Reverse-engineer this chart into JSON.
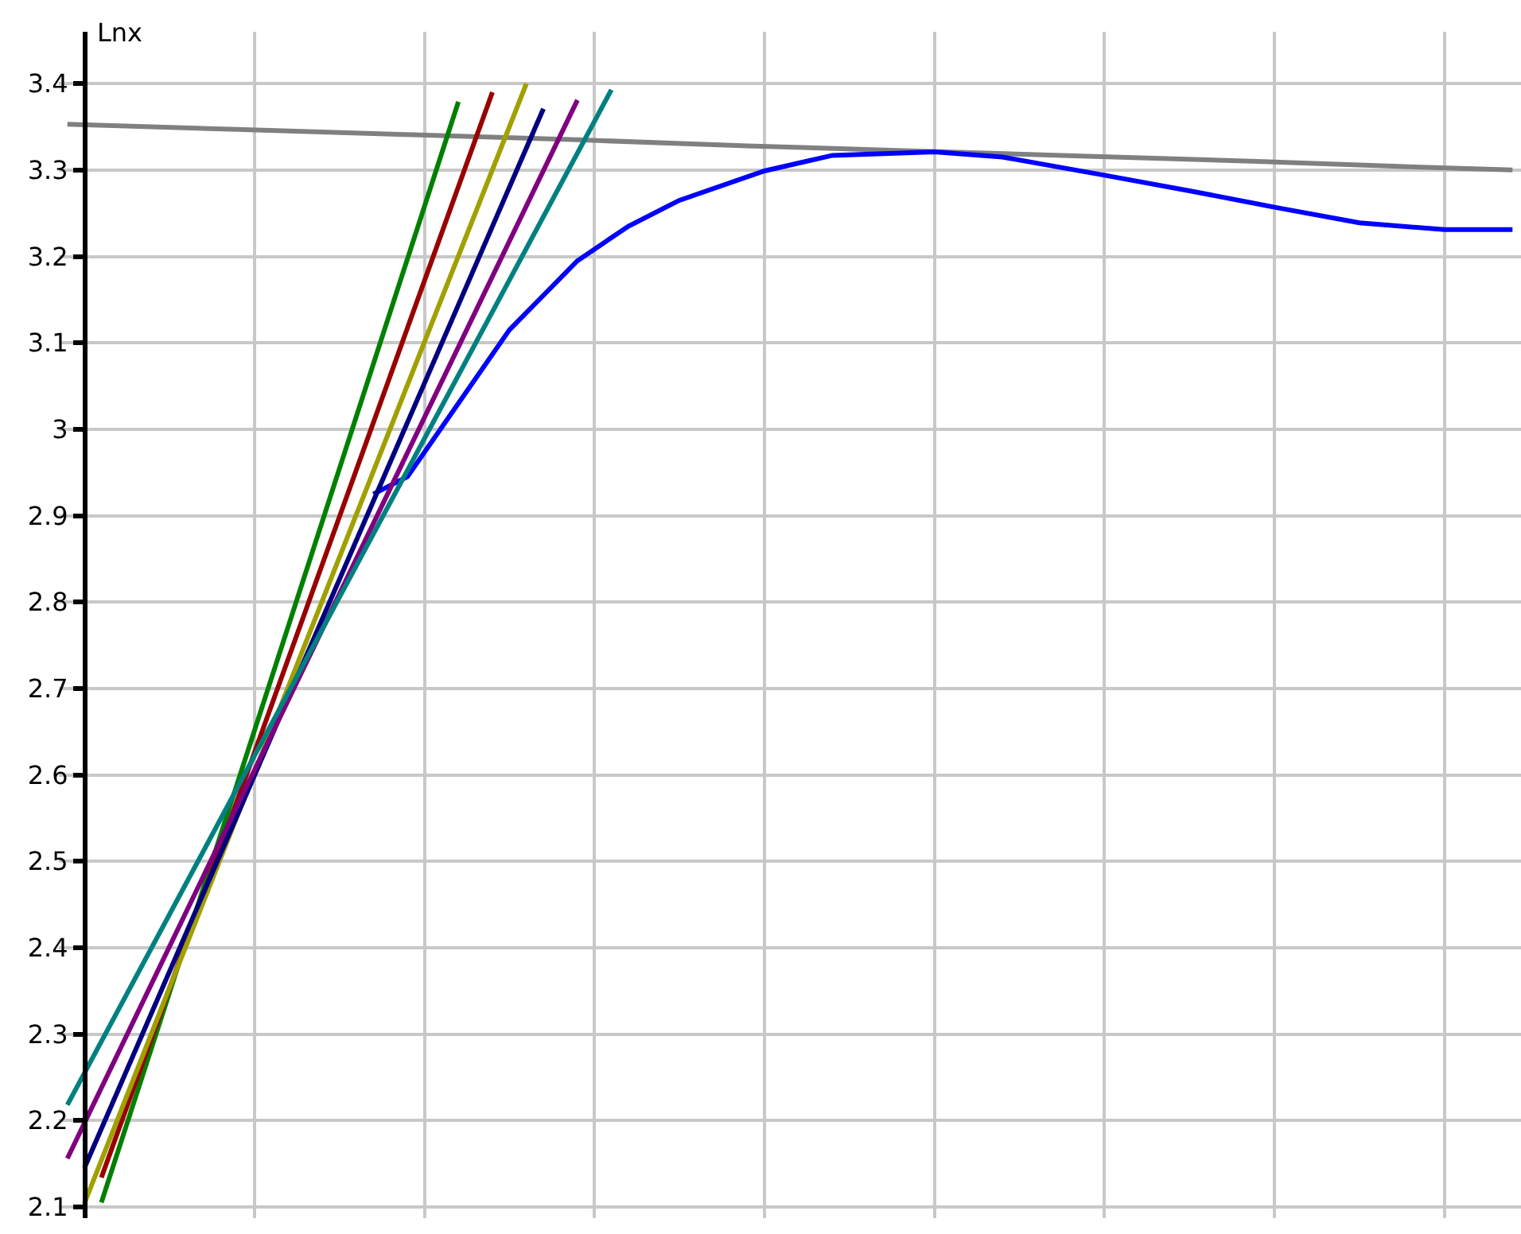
{
  "chart_data": {
    "type": "line",
    "ylabel": "Lnx",
    "categories": [
      null,
      null,
      null,
      null,
      null,
      null,
      null,
      null,
      null,
      null,
      null,
      null,
      null,
      null,
      null,
      null,
      null,
      null,
      null,
      null,
      null,
      null,
      null,
      null,
      null,
      null,
      null,
      null,
      null,
      null,
      null,
      null,
      null,
      null,
      null,
      null,
      null,
      null,
      null,
      null,
      null,
      null,
      null,
      null,
      null,
      null,
      null,
      null,
      null,
      null,
      null,
      null,
      null,
      null,
      null,
      null,
      null,
      null,
      null,
      null,
      null,
      null,
      null,
      null,
      null,
      null,
      null,
      null,
      null,
      null,
      null,
      null,
      null,
      null,
      null,
      null,
      null,
      null,
      null,
      null,
      null,
      null,
      null,
      null,
      null,
      null
    ],
    "series": [
      {
        "color": "#808080",
        "values": [
          3.353,
          null,
          null,
          null,
          null,
          null,
          null,
          null,
          null,
          null,
          3.347,
          null,
          null,
          null,
          null,
          null,
          null,
          null,
          null,
          null,
          3.341,
          null,
          null,
          null,
          null,
          null,
          null,
          null,
          null,
          null,
          3.335,
          null,
          null,
          null,
          null,
          null,
          null,
          null,
          null,
          null,
          3.328,
          null,
          null,
          null,
          null,
          null,
          null,
          null,
          null,
          null,
          3.322,
          null,
          null,
          null,
          null,
          null,
          null,
          null,
          null,
          null,
          3.316,
          null,
          null,
          null,
          null,
          null,
          null,
          null,
          null,
          null,
          3.31,
          null,
          null,
          null,
          null,
          null,
          null,
          null,
          null,
          null,
          3.303,
          null,
          null,
          null,
          null,
          3.3
        ]
      },
      {
        "color": "#0000ff",
        "values": [
          null,
          null,
          null,
          null,
          null,
          null,
          null,
          null,
          null,
          null,
          null,
          null,
          null,
          null,
          null,
          null,
          null,
          null,
          2.925,
          null,
          2.945,
          null,
          null,
          3.03,
          null,
          null,
          3.115,
          null,
          null,
          null,
          3.195,
          null,
          null,
          3.235,
          null,
          null,
          3.265,
          null,
          null,
          null,
          null,
          3.299,
          null,
          null,
          null,
          3.317,
          null,
          null,
          null,
          null,
          null,
          3.321,
          null,
          null,
          null,
          3.315,
          null,
          null,
          null,
          null,
          null,
          3.294,
          null,
          null,
          null,
          null,
          3.276,
          null,
          null,
          null,
          null,
          3.257,
          null,
          null,
          null,
          null,
          3.239,
          null,
          null,
          null,
          null,
          3.231,
          null,
          null,
          null,
          3.231
        ]
      },
      {
        "color": "#008000",
        "values": [
          null,
          null,
          2.105,
          null,
          null,
          null,
          null,
          null,
          null,
          null,
          null,
          null,
          null,
          null,
          null,
          null,
          null,
          null,
          null,
          null,
          null,
          null,
          null,
          3.379,
          null,
          null,
          null,
          null,
          null,
          null,
          null,
          null,
          null,
          null,
          null,
          null,
          null,
          null,
          null,
          null,
          null,
          null,
          null,
          null,
          null,
          null,
          null,
          null,
          null,
          null,
          null,
          null,
          null,
          null,
          null,
          null,
          null,
          null,
          null,
          null,
          null,
          null,
          null,
          null,
          null,
          null,
          null,
          null,
          null,
          null,
          null,
          null,
          null,
          null,
          null,
          null,
          null,
          null,
          null,
          null,
          null,
          null,
          null,
          null,
          null,
          null
        ]
      },
      {
        "color": "#990000",
        "values": [
          null,
          null,
          2.134,
          null,
          null,
          null,
          null,
          null,
          null,
          null,
          null,
          null,
          null,
          null,
          null,
          null,
          null,
          null,
          null,
          null,
          null,
          null,
          null,
          null,
          null,
          3.39,
          null,
          null,
          null,
          null,
          null,
          null,
          null,
          null,
          null,
          null,
          null,
          null,
          null,
          null,
          null,
          null,
          null,
          null,
          null,
          null,
          null,
          null,
          null,
          null,
          null,
          null,
          null,
          null,
          null,
          null,
          null,
          null,
          null,
          null,
          null,
          null,
          null,
          null,
          null,
          null,
          null,
          null,
          null,
          null,
          null,
          null,
          null,
          null,
          null,
          null,
          null,
          null,
          null,
          null,
          null,
          null,
          null,
          null,
          null,
          null
        ]
      },
      {
        "color": "#a0a000",
        "values": [
          null,
          2.104,
          null,
          null,
          null,
          null,
          null,
          null,
          null,
          null,
          null,
          null,
          null,
          null,
          null,
          null,
          null,
          null,
          null,
          null,
          null,
          null,
          null,
          null,
          null,
          null,
          null,
          3.4,
          null,
          null,
          null,
          null,
          null,
          null,
          null,
          null,
          null,
          null,
          null,
          null,
          null,
          null,
          null,
          null,
          null,
          null,
          null,
          null,
          null,
          null,
          null,
          null,
          null,
          null,
          null,
          null,
          null,
          null,
          null,
          null,
          null,
          null,
          null,
          null,
          null,
          null,
          null,
          null,
          null,
          null,
          null,
          null,
          null,
          null,
          null,
          null,
          null,
          null,
          null,
          null,
          null,
          null,
          null,
          null,
          null,
          null
        ]
      },
      {
        "color": "#000080",
        "values": [
          null,
          2.145,
          null,
          null,
          null,
          null,
          null,
          null,
          null,
          null,
          null,
          null,
          null,
          null,
          null,
          null,
          null,
          null,
          null,
          null,
          null,
          null,
          null,
          null,
          null,
          null,
          null,
          null,
          3.371,
          null,
          null,
          null,
          null,
          null,
          null,
          null,
          null,
          null,
          null,
          null,
          null,
          null,
          null,
          null,
          null,
          null,
          null,
          null,
          null,
          null,
          null,
          null,
          null,
          null,
          null,
          null,
          null,
          null,
          null,
          null,
          null,
          null,
          null,
          null,
          null,
          null,
          null,
          null,
          null,
          null,
          null,
          null,
          null,
          null,
          null,
          null,
          null,
          null,
          null,
          null,
          null,
          null,
          null,
          null,
          null,
          null
        ]
      },
      {
        "color": "#800080",
        "values": [
          2.156,
          null,
          null,
          null,
          null,
          null,
          null,
          null,
          null,
          null,
          null,
          null,
          null,
          null,
          null,
          null,
          null,
          null,
          null,
          null,
          null,
          null,
          null,
          null,
          null,
          null,
          null,
          null,
          null,
          null,
          3.381,
          null,
          null,
          null,
          null,
          null,
          null,
          null,
          null,
          null,
          null,
          null,
          null,
          null,
          null,
          null,
          null,
          null,
          null,
          null,
          null,
          null,
          null,
          null,
          null,
          null,
          null,
          null,
          null,
          null,
          null,
          null,
          null,
          null,
          null,
          null,
          null,
          null,
          null,
          null,
          null,
          null,
          null,
          null,
          null,
          null,
          null,
          null,
          null,
          null,
          null,
          null,
          null,
          null,
          null,
          null
        ]
      },
      {
        "color": "#008080",
        "values": [
          2.218,
          null,
          null,
          null,
          null,
          null,
          null,
          null,
          null,
          null,
          null,
          null,
          null,
          null,
          null,
          null,
          null,
          null,
          null,
          null,
          null,
          null,
          null,
          null,
          null,
          null,
          null,
          null,
          null,
          null,
          null,
          null,
          3.393,
          null,
          null,
          null,
          null,
          null,
          null,
          null,
          null,
          null,
          null,
          null,
          null,
          null,
          null,
          null,
          null,
          null,
          null,
          null,
          null,
          null,
          null,
          null,
          null,
          null,
          null,
          null,
          null,
          null,
          null,
          null,
          null,
          null,
          null,
          null,
          null,
          null,
          null,
          null,
          null,
          null,
          null,
          null,
          null,
          null,
          null,
          null,
          null,
          null,
          null,
          null,
          null,
          null
        ]
      }
    ],
    "ylim": [
      2.087,
      3.46
    ],
    "yticks": [
      2.1,
      2.2,
      2.3,
      2.4,
      2.5,
      2.6,
      2.7,
      2.8,
      2.9,
      3,
      3.1,
      3.2,
      3.3,
      3.4
    ],
    "grid": true,
    "tick_labels": "y",
    "line_style": "solid"
  }
}
